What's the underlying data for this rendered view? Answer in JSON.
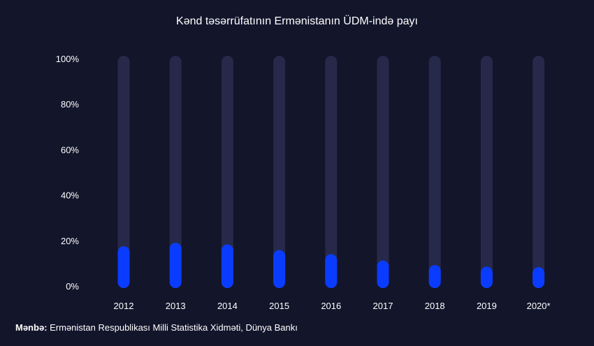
{
  "chart_data": {
    "type": "bar",
    "title": "Kənd təsərrüfatının Ermənistanın ÜDM-ində payı",
    "categories": [
      "2012",
      "2013",
      "2014",
      "2015",
      "2016",
      "2017",
      "2018",
      "2019",
      "2020*"
    ],
    "values": [
      17.5,
      19,
      18.3,
      15.8,
      14,
      11.2,
      9.2,
      8.5,
      8.3
    ],
    "ylim": [
      0,
      100
    ],
    "yticks": [
      "0%",
      "20%",
      "40%",
      "60%",
      "80%",
      "100%"
    ],
    "ytick_values": [
      0,
      20,
      40,
      60,
      80,
      100
    ],
    "grid": false,
    "xlabel": "",
    "ylabel": "",
    "colors": {
      "bar": "#0a3cff",
      "track": "#27294a",
      "background": "#13152b"
    }
  },
  "source": {
    "label": "Mənbə:",
    "text": "Ermənistan Respublikası Milli Statistika Xidməti, Dünya Bankı"
  }
}
